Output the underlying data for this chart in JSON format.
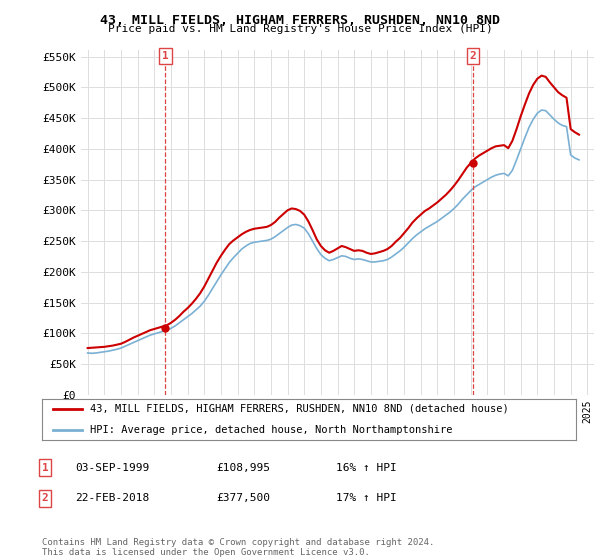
{
  "title": "43, MILL FIELDS, HIGHAM FERRERS, RUSHDEN, NN10 8ND",
  "subtitle": "Price paid vs. HM Land Registry's House Price Index (HPI)",
  "ylabel_ticks": [
    "£0",
    "£50K",
    "£100K",
    "£150K",
    "£200K",
    "£250K",
    "£300K",
    "£350K",
    "£400K",
    "£450K",
    "£500K",
    "£550K"
  ],
  "ytick_values": [
    0,
    50000,
    100000,
    150000,
    200000,
    250000,
    300000,
    350000,
    400000,
    450000,
    500000,
    550000
  ],
  "ylim": [
    0,
    560000
  ],
  "xlim_start": 1994.6,
  "xlim_end": 2025.4,
  "xtick_years": [
    1995,
    1996,
    1997,
    1998,
    1999,
    2000,
    2001,
    2002,
    2003,
    2004,
    2005,
    2006,
    2007,
    2008,
    2009,
    2010,
    2011,
    2012,
    2013,
    2014,
    2015,
    2016,
    2017,
    2018,
    2019,
    2020,
    2021,
    2022,
    2023,
    2024,
    2025
  ],
  "sale1_x": 1999.67,
  "sale1_y": 108995,
  "sale1_label": "1",
  "sale1_date": "03-SEP-1999",
  "sale1_price": "£108,995",
  "sale1_hpi": "16% ↑ HPI",
  "sale2_x": 2018.13,
  "sale2_y": 377500,
  "sale2_label": "2",
  "sale2_date": "22-FEB-2018",
  "sale2_price": "£377,500",
  "sale2_hpi": "17% ↑ HPI",
  "line_color_red": "#cc0000",
  "line_color_blue": "#7ab0d4",
  "vline_color": "#dd4444",
  "background_color": "#ffffff",
  "grid_color": "#dddddd",
  "legend1_label": "43, MILL FIELDS, HIGHAM FERRERS, RUSHDEN, NN10 8ND (detached house)",
  "legend2_label": "HPI: Average price, detached house, North Northamptonshire",
  "footer": "Contains HM Land Registry data © Crown copyright and database right 2024.\nThis data is licensed under the Open Government Licence v3.0.",
  "hpi_data_x": [
    1995.0,
    1995.25,
    1995.5,
    1995.75,
    1996.0,
    1996.25,
    1996.5,
    1996.75,
    1997.0,
    1997.25,
    1997.5,
    1997.75,
    1998.0,
    1998.25,
    1998.5,
    1998.75,
    1999.0,
    1999.25,
    1999.5,
    1999.75,
    2000.0,
    2000.25,
    2000.5,
    2000.75,
    2001.0,
    2001.25,
    2001.5,
    2001.75,
    2002.0,
    2002.25,
    2002.5,
    2002.75,
    2003.0,
    2003.25,
    2003.5,
    2003.75,
    2004.0,
    2004.25,
    2004.5,
    2004.75,
    2005.0,
    2005.25,
    2005.5,
    2005.75,
    2006.0,
    2006.25,
    2006.5,
    2006.75,
    2007.0,
    2007.25,
    2007.5,
    2007.75,
    2008.0,
    2008.25,
    2008.5,
    2008.75,
    2009.0,
    2009.25,
    2009.5,
    2009.75,
    2010.0,
    2010.25,
    2010.5,
    2010.75,
    2011.0,
    2011.25,
    2011.5,
    2011.75,
    2012.0,
    2012.25,
    2012.5,
    2012.75,
    2013.0,
    2013.25,
    2013.5,
    2013.75,
    2014.0,
    2014.25,
    2014.5,
    2014.75,
    2015.0,
    2015.25,
    2015.5,
    2015.75,
    2016.0,
    2016.25,
    2016.5,
    2016.75,
    2017.0,
    2017.25,
    2017.5,
    2017.75,
    2018.0,
    2018.25,
    2018.5,
    2018.75,
    2019.0,
    2019.25,
    2019.5,
    2019.75,
    2020.0,
    2020.25,
    2020.5,
    2020.75,
    2021.0,
    2021.25,
    2021.5,
    2021.75,
    2022.0,
    2022.25,
    2022.5,
    2022.75,
    2023.0,
    2023.25,
    2023.5,
    2023.75,
    2024.0,
    2024.25,
    2024.5
  ],
  "hpi_data_y": [
    68000,
    67500,
    68000,
    69000,
    70000,
    71000,
    72500,
    74000,
    76000,
    79000,
    82000,
    85000,
    88000,
    91000,
    94000,
    97000,
    99000,
    101000,
    103000,
    105000,
    108000,
    112000,
    117000,
    122000,
    127000,
    132000,
    138000,
    144000,
    152000,
    162000,
    173000,
    184000,
    195000,
    205000,
    215000,
    223000,
    230000,
    237000,
    242000,
    246000,
    248000,
    249000,
    250000,
    251000,
    253000,
    257000,
    262000,
    267000,
    272000,
    276000,
    277000,
    275000,
    271000,
    262000,
    250000,
    238000,
    228000,
    222000,
    218000,
    220000,
    223000,
    226000,
    225000,
    222000,
    220000,
    221000,
    220000,
    218000,
    216000,
    216000,
    217000,
    218000,
    220000,
    224000,
    229000,
    234000,
    240000,
    247000,
    254000,
    260000,
    265000,
    270000,
    274000,
    278000,
    282000,
    287000,
    292000,
    297000,
    303000,
    310000,
    318000,
    325000,
    332000,
    338000,
    342000,
    346000,
    350000,
    354000,
    357000,
    359000,
    360000,
    356000,
    365000,
    382000,
    400000,
    418000,
    435000,
    448000,
    458000,
    463000,
    462000,
    455000,
    448000,
    442000,
    438000,
    436000,
    390000,
    385000,
    382000
  ],
  "price_data_x": [
    1995.0,
    1995.25,
    1995.5,
    1995.75,
    1996.0,
    1996.25,
    1996.5,
    1996.75,
    1997.0,
    1997.25,
    1997.5,
    1997.75,
    1998.0,
    1998.25,
    1998.5,
    1998.75,
    1999.0,
    1999.25,
    1999.5,
    1999.75,
    2000.0,
    2000.25,
    2000.5,
    2000.75,
    2001.0,
    2001.25,
    2001.5,
    2001.75,
    2002.0,
    2002.25,
    2002.5,
    2002.75,
    2003.0,
    2003.25,
    2003.5,
    2003.75,
    2004.0,
    2004.25,
    2004.5,
    2004.75,
    2005.0,
    2005.25,
    2005.5,
    2005.75,
    2006.0,
    2006.25,
    2006.5,
    2006.75,
    2007.0,
    2007.25,
    2007.5,
    2007.75,
    2008.0,
    2008.25,
    2008.5,
    2008.75,
    2009.0,
    2009.25,
    2009.5,
    2009.75,
    2010.0,
    2010.25,
    2010.5,
    2010.75,
    2011.0,
    2011.25,
    2011.5,
    2011.75,
    2012.0,
    2012.25,
    2012.5,
    2012.75,
    2013.0,
    2013.25,
    2013.5,
    2013.75,
    2014.0,
    2014.25,
    2014.5,
    2014.75,
    2015.0,
    2015.25,
    2015.5,
    2015.75,
    2016.0,
    2016.25,
    2016.5,
    2016.75,
    2017.0,
    2017.25,
    2017.5,
    2017.75,
    2018.0,
    2018.25,
    2018.5,
    2018.75,
    2019.0,
    2019.25,
    2019.5,
    2019.75,
    2020.0,
    2020.25,
    2020.5,
    2020.75,
    2021.0,
    2021.25,
    2021.5,
    2021.75,
    2022.0,
    2022.25,
    2022.5,
    2022.75,
    2023.0,
    2023.25,
    2023.5,
    2023.75,
    2024.0,
    2024.25,
    2024.5
  ],
  "price_data_y": [
    76000,
    76500,
    77000,
    77500,
    78000,
    79000,
    80000,
    81500,
    83000,
    86000,
    89500,
    93000,
    96000,
    99000,
    102000,
    105000,
    107000,
    109000,
    111000,
    113000,
    117000,
    122000,
    128000,
    135000,
    141000,
    148000,
    156000,
    165000,
    176000,
    189000,
    202000,
    215000,
    226000,
    236000,
    245000,
    251000,
    256000,
    261000,
    265000,
    268000,
    270000,
    271000,
    272000,
    273000,
    276000,
    281000,
    288000,
    294000,
    300000,
    303000,
    302000,
    299000,
    293000,
    282000,
    268000,
    253000,
    242000,
    235000,
    231000,
    234000,
    238000,
    242000,
    240000,
    237000,
    234000,
    235000,
    234000,
    231000,
    229000,
    230000,
    232000,
    234000,
    237000,
    242000,
    249000,
    255000,
    263000,
    271000,
    280000,
    287000,
    293000,
    299000,
    303000,
    308000,
    313000,
    319000,
    325000,
    332000,
    340000,
    349000,
    359000,
    369000,
    377000,
    384000,
    389000,
    393000,
    397000,
    401000,
    404000,
    405000,
    406000,
    401000,
    413000,
    432000,
    453000,
    472000,
    490000,
    504000,
    514000,
    519000,
    517000,
    508000,
    500000,
    492000,
    487000,
    483000,
    432000,
    427000,
    423000
  ]
}
